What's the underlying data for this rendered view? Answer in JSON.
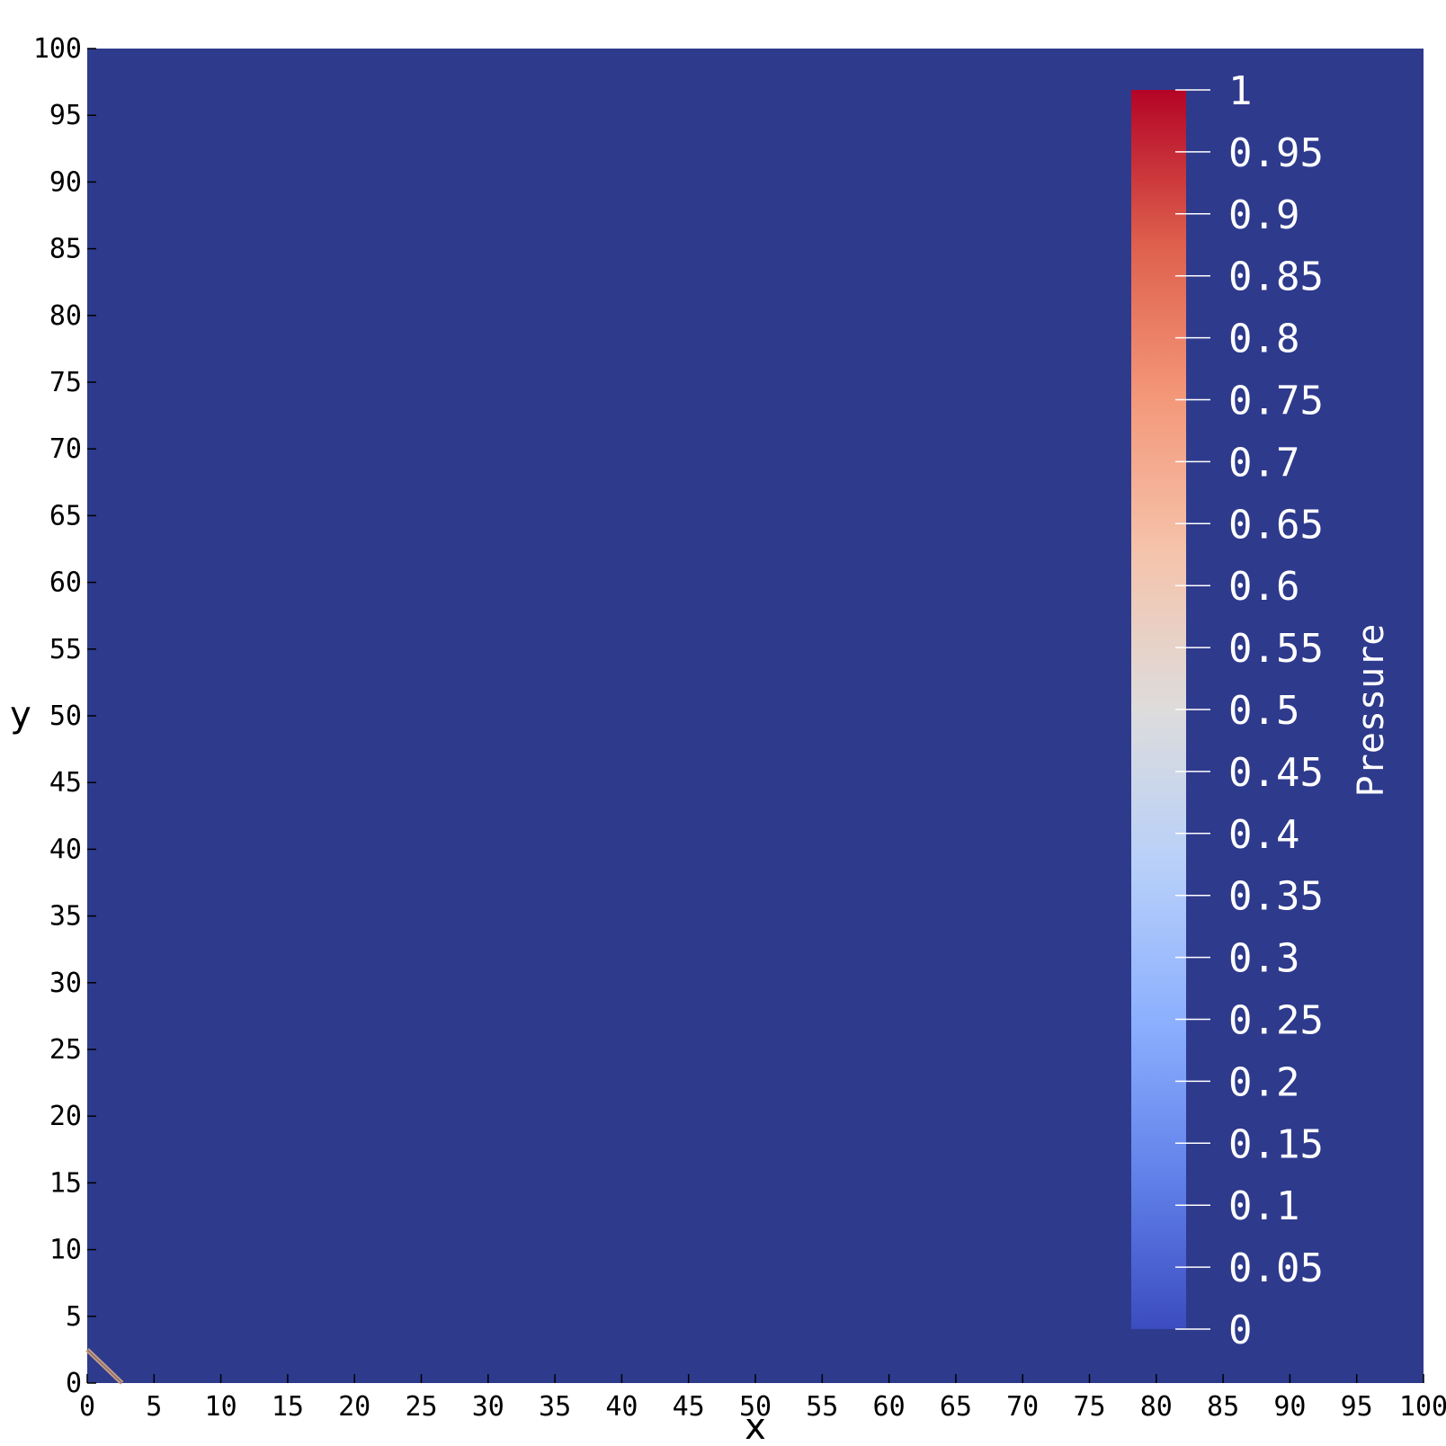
{
  "chart_data": {
    "type": "heatmap",
    "title": "",
    "xlabel": "x",
    "ylabel": "y",
    "xlim": [
      0,
      100
    ],
    "ylim": [
      0,
      100
    ],
    "x_ticks": [
      0,
      5,
      10,
      15,
      20,
      25,
      30,
      35,
      40,
      45,
      50,
      55,
      60,
      65,
      70,
      75,
      80,
      85,
      90,
      95,
      100
    ],
    "y_ticks": [
      0,
      5,
      10,
      15,
      20,
      25,
      30,
      35,
      40,
      45,
      50,
      55,
      60,
      65,
      70,
      75,
      80,
      85,
      90,
      95,
      100
    ],
    "field": "Pressure",
    "background_value": 0,
    "background_color": "#2e3a8c",
    "wavefront": {
      "from": [
        0,
        2.5
      ],
      "to": [
        2.6,
        0
      ],
      "color": "#c9a08a"
    },
    "colorbar": {
      "title": "Pressure",
      "range": [
        0,
        1
      ],
      "ticks": [
        "1",
        "0.95",
        "0.9",
        "0.85",
        "0.8",
        "0.75",
        "0.7",
        "0.65",
        "0.6",
        "0.55",
        "0.5",
        "0.45",
        "0.4",
        "0.35",
        "0.3",
        "0.25",
        "0.2",
        "0.15",
        "0.1",
        "0.05",
        "0"
      ],
      "colormap": [
        "#3b4cc0",
        "#6282ea",
        "#8db0fe",
        "#b8d0f9",
        "#dddcdc",
        "#f5c4ac",
        "#f4987a",
        "#de604d",
        "#b40426"
      ],
      "placement": "inside-right"
    }
  }
}
